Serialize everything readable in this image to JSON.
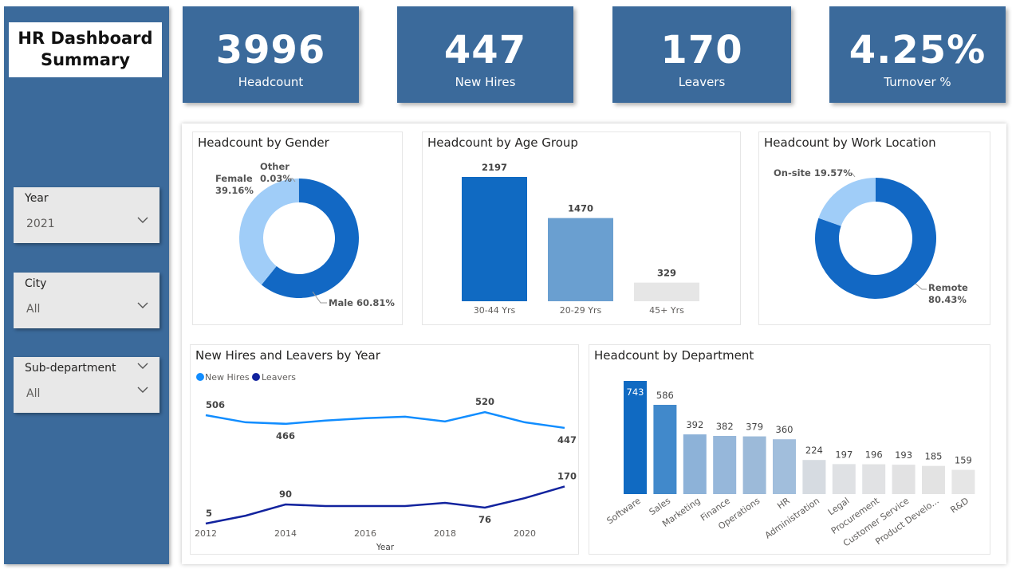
{
  "sidebar": {
    "title": "HR Dashboard Summary",
    "slicers": [
      {
        "label": "Year",
        "value": "2021"
      },
      {
        "label": "City",
        "value": "All"
      },
      {
        "label": "Sub-department",
        "value": "All"
      }
    ]
  },
  "kpis": [
    {
      "value": "3996",
      "label": "Headcount"
    },
    {
      "value": "447",
      "label": "New Hires"
    },
    {
      "value": "170",
      "label": "Leavers"
    },
    {
      "value": "4.25%",
      "label": "Turnover %"
    }
  ],
  "chart_data": [
    {
      "type": "pie",
      "title": "Headcount by Gender",
      "donut": true,
      "slices": [
        {
          "label": "Male",
          "value": 60.81,
          "color": "#1268c4",
          "text": "Male 60.81%"
        },
        {
          "label": "Female",
          "value": 39.16,
          "color": "#a0cdf8",
          "text": "Female 39.16%"
        },
        {
          "label": "Other",
          "value": 0.03,
          "color": "#3a6aa0",
          "text": "Other 0.03%"
        }
      ]
    },
    {
      "type": "bar",
      "title": "Headcount by Age Group",
      "categories": [
        "30-44 Yrs",
        "20-29 Yrs",
        "45+ Yrs"
      ],
      "values": [
        2197,
        1470,
        329
      ],
      "colors": [
        "#106ac2",
        "#6a9fd0",
        "#e6e6e6"
      ]
    },
    {
      "type": "pie",
      "title": "Headcount by Work Location",
      "donut": true,
      "slices": [
        {
          "label": "Remote",
          "value": 80.43,
          "color": "#1268c4",
          "text": "Remote 80.43%"
        },
        {
          "label": "On-site",
          "value": 19.57,
          "color": "#a0cdf8",
          "text": "On-site 19.57%"
        }
      ]
    },
    {
      "type": "line",
      "title": "New Hires and Leavers by Year",
      "xlabel": "Year",
      "x": [
        2012,
        2013,
        2014,
        2015,
        2016,
        2017,
        2018,
        2019,
        2020,
        2021
      ],
      "xticks": [
        "2012",
        "2014",
        "2016",
        "2018",
        "2020"
      ],
      "legend": "top-left",
      "series": [
        {
          "name": "New Hires",
          "color": "#118dff",
          "values": [
            506,
            473,
            466,
            481,
            492,
            499,
            477,
            520,
            473,
            447
          ],
          "labels": {
            "0": "506",
            "2": "466",
            "7": "520",
            "9": "447"
          }
        },
        {
          "name": "Leavers",
          "color": "#12239e",
          "values": [
            5,
            40,
            90,
            83,
            83,
            83,
            97,
            76,
            118,
            170
          ],
          "labels": {
            "0": "5",
            "2": "90",
            "7": "76",
            "9": "170"
          }
        }
      ]
    },
    {
      "type": "bar",
      "title": "Headcount by Department",
      "categories": [
        "Software",
        "Sales",
        "Marketing",
        "Finance",
        "Operations",
        "HR",
        "Administration",
        "Legal",
        "Procurement",
        "Customer Service",
        "Product Develo...",
        "R&D"
      ],
      "values": [
        743,
        586,
        392,
        382,
        379,
        360,
        224,
        197,
        196,
        193,
        185,
        159
      ],
      "colors": [
        "#106ac2",
        "#4189cb",
        "#8db2d8",
        "#96b7da",
        "#9cbad9",
        "#a1bedc",
        "#d6dbe1",
        "#dfe1e4",
        "#e1e2e4",
        "#e2e2e3",
        "#e3e3e3",
        "#e6e6e6"
      ]
    }
  ]
}
